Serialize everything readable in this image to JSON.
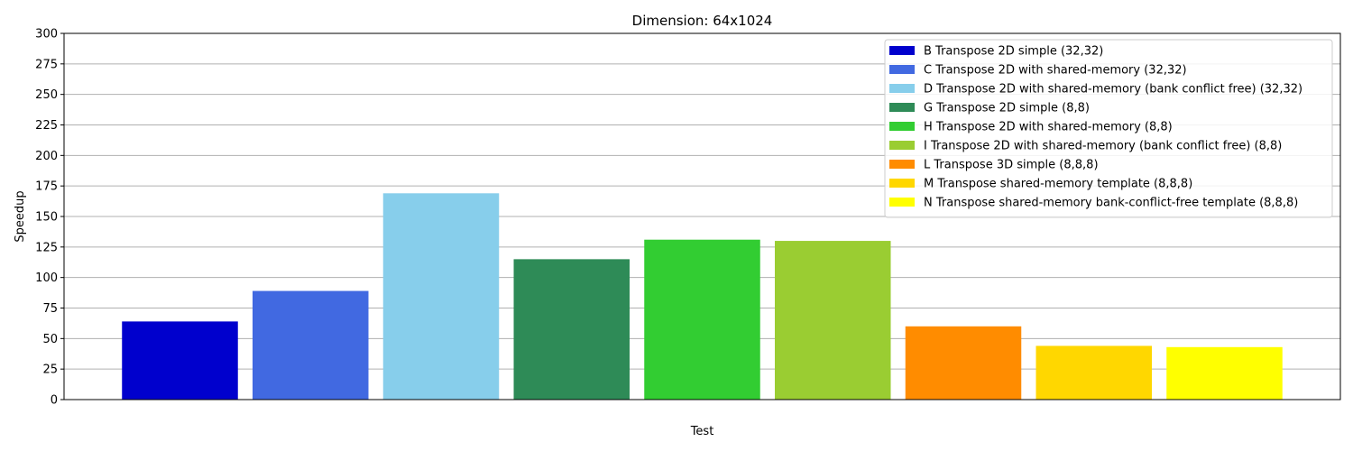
{
  "chart_data": {
    "type": "bar",
    "title": "Dimension: 64x1024",
    "xlabel": "Test",
    "ylabel": "Speedup",
    "ylim": [
      0,
      300
    ],
    "yticks": [
      0,
      25,
      50,
      75,
      100,
      125,
      150,
      175,
      200,
      225,
      250,
      275,
      300
    ],
    "grid": "y",
    "legend_position": "top-right",
    "series": [
      {
        "name": "B Transpose 2D simple (32,32)",
        "value": 64,
        "color": "#0000CD"
      },
      {
        "name": "C Transpose 2D with shared-memory (32,32)",
        "value": 89,
        "color": "#4169E1"
      },
      {
        "name": "D Transpose 2D with shared-memory (bank conflict free) (32,32)",
        "value": 169,
        "color": "#87CEEB"
      },
      {
        "name": "G Transpose 2D simple (8,8)",
        "value": 115,
        "color": "#2E8B57"
      },
      {
        "name": "H Transpose 2D with shared-memory (8,8)",
        "value": 131,
        "color": "#32CD32"
      },
      {
        "name": "I Transpose 2D with shared-memory (bank conflict free) (8,8)",
        "value": 130,
        "color": "#9ACD32"
      },
      {
        "name": "L Transpose 3D simple (8,8,8)",
        "value": 60,
        "color": "#FF8C00"
      },
      {
        "name": "M Transpose shared-memory template (8,8,8)",
        "value": 44,
        "color": "#FFD700"
      },
      {
        "name": "N Transpose shared-memory bank-conflict-free template (8,8,8)",
        "value": 43,
        "color": "#FFFF00"
      }
    ]
  }
}
